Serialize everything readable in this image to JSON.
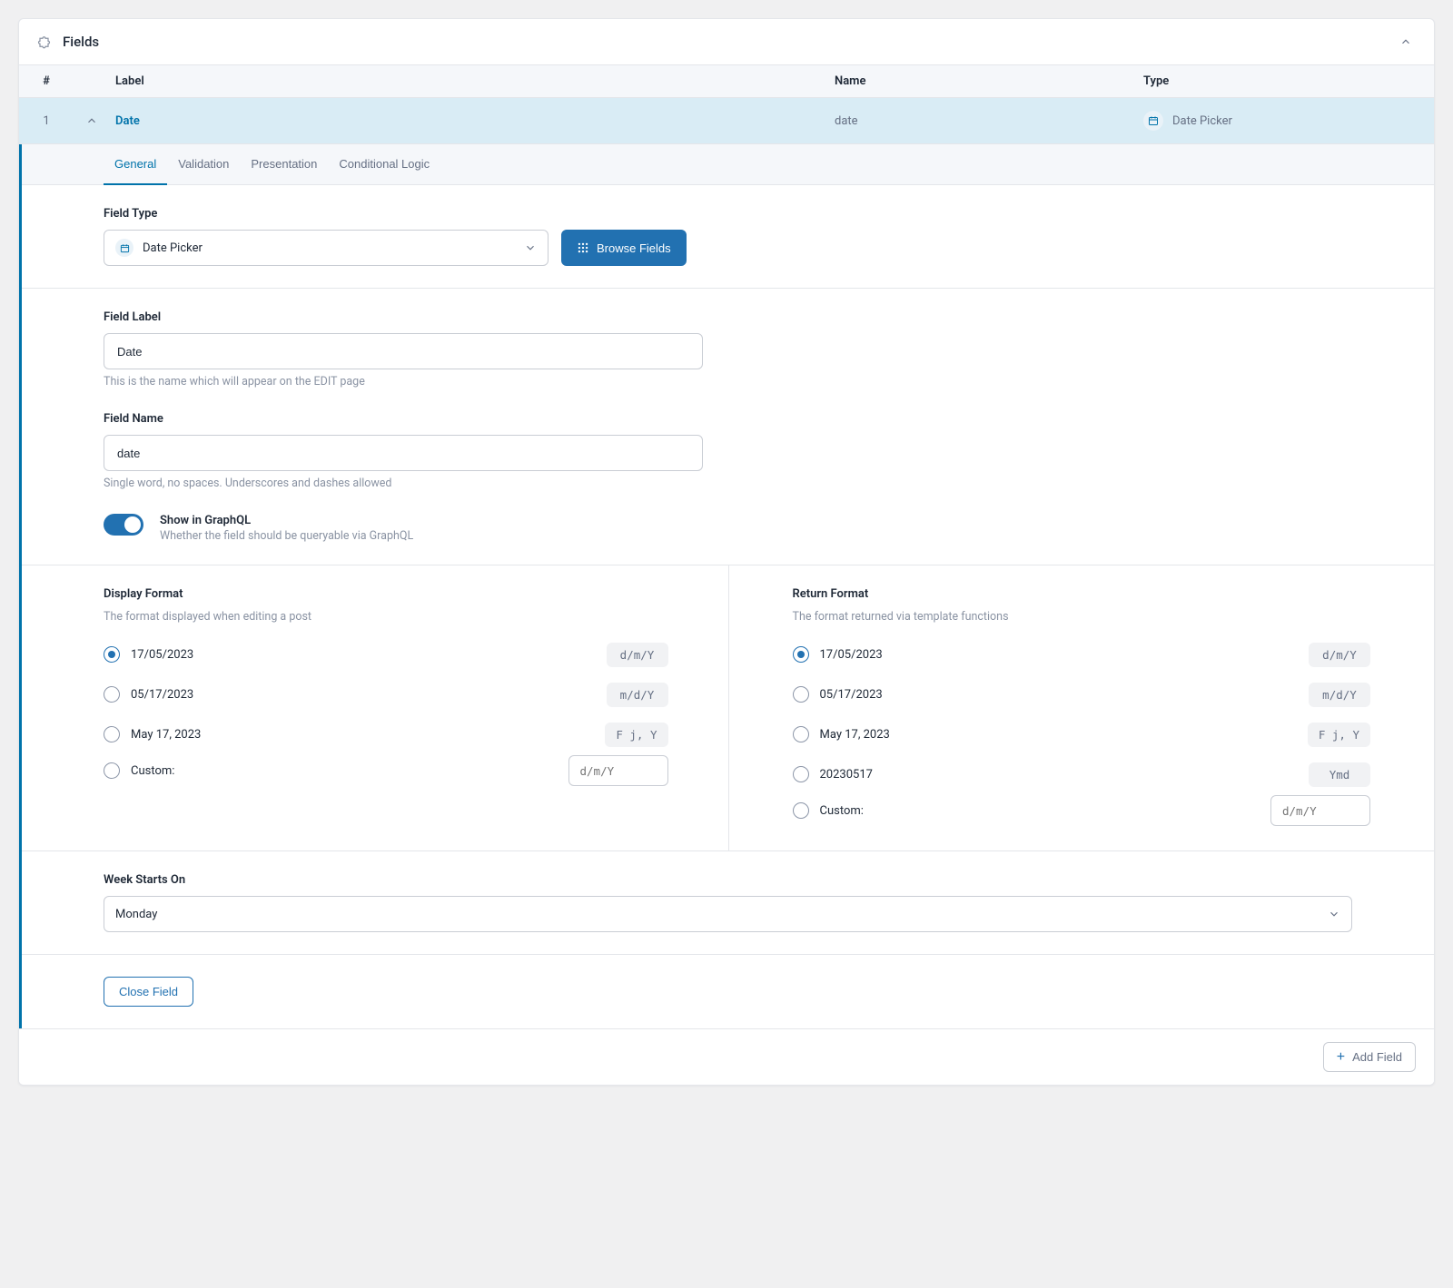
{
  "card": {
    "title": "Fields",
    "columns": {
      "num": "#",
      "label": "Label",
      "name": "Name",
      "type": "Type"
    }
  },
  "row": {
    "num": "1",
    "label": "Date",
    "name": "date",
    "type": "Date Picker"
  },
  "tabs": {
    "general": "General",
    "validation": "Validation",
    "presentation": "Presentation",
    "conditional": "Conditional Logic"
  },
  "fieldType": {
    "label": "Field Type",
    "value": "Date Picker",
    "browse": "Browse Fields"
  },
  "fieldLabel": {
    "label": "Field Label",
    "value": "Date",
    "desc": "This is the name which will appear on the EDIT page"
  },
  "fieldName": {
    "label": "Field Name",
    "value": "date",
    "desc": "Single word, no spaces. Underscores and dashes allowed"
  },
  "graphql": {
    "title": "Show in GraphQL",
    "desc": "Whether the field should be queryable via GraphQL"
  },
  "displayFormat": {
    "title": "Display Format",
    "desc": "The format displayed when editing a post",
    "options": [
      {
        "label": "17/05/2023",
        "code": "d/m/Y",
        "selected": true
      },
      {
        "label": "05/17/2023",
        "code": "m/d/Y",
        "selected": false
      },
      {
        "label": "May 17, 2023",
        "code": "F j, Y",
        "selected": false
      }
    ],
    "custom": {
      "label": "Custom:",
      "placeholder": "d/m/Y"
    }
  },
  "returnFormat": {
    "title": "Return Format",
    "desc": "The format returned via template functions",
    "options": [
      {
        "label": "17/05/2023",
        "code": "d/m/Y",
        "selected": true
      },
      {
        "label": "05/17/2023",
        "code": "m/d/Y",
        "selected": false
      },
      {
        "label": "May 17, 2023",
        "code": "F j, Y",
        "selected": false
      },
      {
        "label": "20230517",
        "code": "Ymd",
        "selected": false
      }
    ],
    "custom": {
      "label": "Custom:",
      "placeholder": "d/m/Y"
    }
  },
  "weekStarts": {
    "label": "Week Starts On",
    "value": "Monday"
  },
  "buttons": {
    "close": "Close Field",
    "add": "Add Field"
  },
  "style": {
    "accent": "#2271b1",
    "row_active_bg": "#d9ecf5",
    "tab_bg": "#f5f7fa"
  }
}
